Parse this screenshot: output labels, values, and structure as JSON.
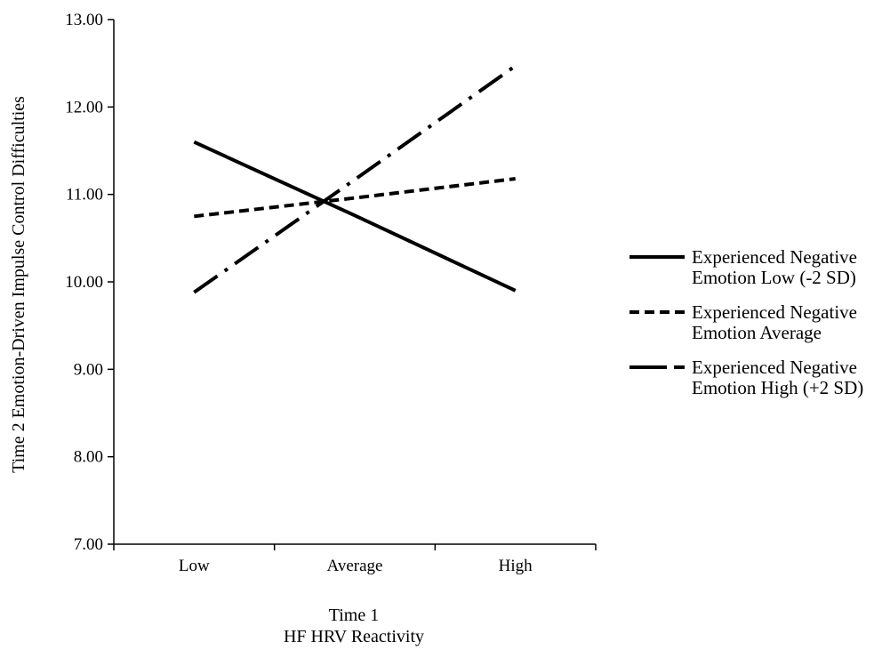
{
  "chart_data": {
    "type": "line",
    "title": "",
    "ylabel": "Time 2 Emotion-Driven Impulse Control Difficulties",
    "xlabel_lines": [
      "Time 1",
      "HF HRV Reactivity"
    ],
    "categories": [
      "Low",
      "Average",
      "High"
    ],
    "ylim": [
      7.0,
      13.0
    ],
    "yticks": [
      "7.00",
      "8.00",
      "9.00",
      "10.00",
      "11.00",
      "12.00",
      "13.00"
    ],
    "grid": false,
    "legend_position": "right",
    "series": [
      {
        "name_lines": [
          "Experienced Negative",
          "Emotion Low (-2 SD)"
        ],
        "values": [
          11.6,
          10.76,
          9.9
        ],
        "line_style": "solid",
        "color": "#000000"
      },
      {
        "name_lines": [
          "Experienced Negative",
          "Emotion Average"
        ],
        "values": [
          10.75,
          10.96,
          11.18
        ],
        "line_style": "dashed",
        "color": "#000000"
      },
      {
        "name_lines": [
          "Experienced Negative",
          "Emotion High (+2 SD)"
        ],
        "values": [
          9.88,
          11.17,
          12.47
        ],
        "line_style": "dash-dot",
        "color": "#000000"
      }
    ]
  }
}
